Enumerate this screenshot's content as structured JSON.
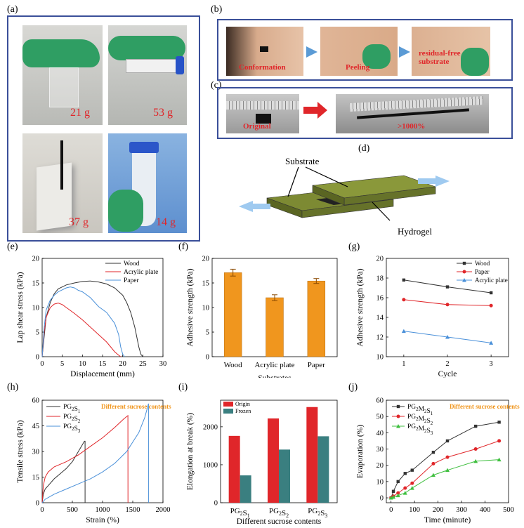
{
  "labels": {
    "a": "(a)",
    "b": "(b)",
    "c": "(c)",
    "d": "(d)",
    "e": "(e)",
    "f": "(f)",
    "g": "(g)",
    "h": "(h)",
    "i": "(i)",
    "j": "(j)"
  },
  "panel_a": {
    "weights": [
      "21 g",
      "53 g",
      "37 g",
      "14 g"
    ]
  },
  "panel_b": {
    "steps": [
      "Conformation",
      "Peeling",
      "residual-free substrate"
    ]
  },
  "panel_c": {
    "left": "Original",
    "right": ">1000%"
  },
  "panel_d": {
    "substrate": "Substrate",
    "hydrogel": "Hydrogel"
  },
  "colors": {
    "frame": "#3a4f99",
    "red": "#e0262a",
    "blue": "#4a90d9",
    "orange": "#f0961e",
    "teal": "#3a7f80",
    "slab": "#6e7a2a"
  },
  "chart_data": [
    {
      "id": "e",
      "type": "line",
      "xlabel": "Displacement (mm)",
      "ylabel": "Lap shear stress (kPa)",
      "xlim": [
        0,
        30
      ],
      "ylim": [
        0,
        20
      ],
      "xticks": [
        0,
        5,
        10,
        15,
        20,
        25,
        30
      ],
      "yticks": [
        0,
        5,
        10,
        15,
        20
      ],
      "legend_position": "top-right",
      "series": [
        {
          "name": "Wood",
          "color": "#333333",
          "x": [
            0,
            1,
            2,
            3,
            4,
            6,
            8,
            10,
            12,
            14,
            16,
            18,
            20,
            21,
            22,
            23,
            24,
            24.5,
            25
          ],
          "y": [
            0,
            8,
            11,
            12.8,
            13.8,
            14.6,
            15,
            15.3,
            15.4,
            15.2,
            14.8,
            14,
            12.5,
            11,
            9,
            6,
            2,
            0.5,
            0
          ]
        },
        {
          "name": "Acrylic plate",
          "color": "#e0262a",
          "x": [
            0,
            0.5,
            1,
            2,
            3,
            4,
            5,
            6,
            8,
            10,
            12,
            14,
            16,
            17,
            18,
            19,
            19.5
          ],
          "y": [
            0,
            5,
            8,
            10,
            10.7,
            10.9,
            10.6,
            10,
            8.8,
            7.5,
            6,
            4.5,
            3,
            2,
            1,
            0.3,
            0
          ]
        },
        {
          "name": "Paper",
          "color": "#4a90d9",
          "x": [
            0,
            0.5,
            1,
            2,
            3,
            4,
            5,
            6,
            7,
            8,
            9,
            10,
            12,
            14,
            16,
            18,
            19,
            19.5,
            20,
            20.5
          ],
          "y": [
            0,
            6,
            9.5,
            11.5,
            12.5,
            13.2,
            13.6,
            14,
            14.2,
            14,
            13.5,
            13.2,
            12,
            10.2,
            9,
            6.8,
            4.5,
            2,
            0.5,
            0
          ]
        }
      ]
    },
    {
      "id": "f",
      "type": "bar",
      "xlabel": "Substrates",
      "ylabel": "Adhesive strength (kPa)",
      "ylim": [
        0,
        20
      ],
      "yticks": [
        0,
        5,
        10,
        15,
        20
      ],
      "categories": [
        "Wood",
        "Acrylic plate",
        "Paper"
      ],
      "values": [
        17.1,
        12.0,
        15.4
      ],
      "errors": [
        0.7,
        0.6,
        0.5
      ],
      "color": "#f0961e"
    },
    {
      "id": "g",
      "type": "line",
      "xlabel": "Cycle",
      "ylabel": "Adhesive strength (kPa)",
      "xlim": [
        0.6,
        3.4
      ],
      "ylim": [
        10,
        20
      ],
      "xticks": [
        1,
        2,
        3
      ],
      "yticks": [
        10,
        12,
        14,
        16,
        18,
        20
      ],
      "legend_position": "top-right",
      "series": [
        {
          "name": "Wood",
          "color": "#333333",
          "marker": "square",
          "x": [
            1,
            2,
            3
          ],
          "y": [
            17.8,
            17.1,
            16.5
          ]
        },
        {
          "name": "Paper",
          "color": "#e0262a",
          "marker": "circle",
          "x": [
            1,
            2,
            3
          ],
          "y": [
            15.8,
            15.3,
            15.2
          ]
        },
        {
          "name": "Acrylic plate",
          "color": "#4a90d9",
          "marker": "triangle",
          "x": [
            1,
            2,
            3
          ],
          "y": [
            12.6,
            12.0,
            11.4
          ]
        }
      ]
    },
    {
      "id": "h",
      "type": "line",
      "xlabel": "Strain (%)",
      "ylabel": "Tensile stress (kPa)",
      "xlim": [
        0,
        2000
      ],
      "ylim": [
        0,
        60
      ],
      "xticks": [
        0,
        500,
        1000,
        1500,
        2000
      ],
      "yticks": [
        0,
        15,
        30,
        45,
        60
      ],
      "annotation": "Different sucrose contents",
      "legend_position": "top-left",
      "series": [
        {
          "name": "PG2S1",
          "color": "#333333",
          "x": [
            0,
            20,
            50,
            100,
            200,
            300,
            400,
            500,
            600,
            700,
            710,
            711
          ],
          "y": [
            0,
            5,
            8,
            10,
            14,
            17,
            20,
            24,
            30,
            36,
            36,
            0
          ]
        },
        {
          "name": "PG2S2",
          "color": "#e0262a",
          "x": [
            0,
            20,
            50,
            100,
            200,
            400,
            600,
            800,
            1000,
            1200,
            1350,
            1420,
            1421
          ],
          "y": [
            0,
            10,
            15,
            18,
            21,
            24,
            28,
            33,
            38,
            44,
            49,
            51,
            0
          ]
        },
        {
          "name": "PG2S3",
          "color": "#4a90d9",
          "x": [
            0,
            50,
            100,
            200,
            400,
            600,
            800,
            1000,
            1200,
            1400,
            1600,
            1700,
            1760,
            1761
          ],
          "y": [
            0,
            2,
            3,
            5,
            8,
            11,
            14,
            18,
            23,
            30,
            41,
            50,
            58,
            0
          ]
        }
      ]
    },
    {
      "id": "i",
      "type": "bar",
      "xlabel": "Different sucrose contents",
      "ylabel": "Elongation at break (%)",
      "ylim": [
        0,
        2700
      ],
      "yticks": [
        0,
        1000,
        2000
      ],
      "categories": [
        "PG2S1",
        "PG2S2",
        "PG2S3"
      ],
      "series": [
        {
          "name": "Origin",
          "color": "#e0262a",
          "values": [
            1760,
            2220,
            2520
          ]
        },
        {
          "name": "Frozen",
          "color": "#3a7f80",
          "values": [
            720,
            1400,
            1750
          ]
        }
      ]
    },
    {
      "id": "j",
      "type": "line",
      "xlabel": "Time (minute)",
      "ylabel": "Evaporation (%)",
      "xlim": [
        -20,
        500
      ],
      "ylim": [
        -3,
        60
      ],
      "xticks": [
        0,
        100,
        200,
        300,
        400,
        500
      ],
      "yticks": [
        0,
        10,
        20,
        30,
        40,
        50,
        60
      ],
      "annotation": "Different sucrose contents",
      "legend_position": "top-left",
      "series": [
        {
          "name": "PG2M2S1",
          "color": "#333333",
          "marker": "square",
          "x": [
            0,
            10,
            30,
            60,
            90,
            180,
            240,
            360,
            460
          ],
          "y": [
            0,
            4,
            10,
            15,
            17,
            28,
            35,
            44,
            46.5
          ]
        },
        {
          "name": "PG2M2S2",
          "color": "#e0262a",
          "marker": "circle",
          "x": [
            0,
            10,
            30,
            60,
            90,
            180,
            240,
            360,
            460
          ],
          "y": [
            0,
            1,
            3,
            6,
            9,
            21,
            25,
            30,
            35
          ]
        },
        {
          "name": "PG2M2S3",
          "color": "#3fbf3f",
          "marker": "triangle",
          "x": [
            0,
            10,
            30,
            60,
            90,
            180,
            240,
            360,
            460
          ],
          "y": [
            0,
            0.5,
            1.5,
            3,
            6,
            14,
            17,
            22.5,
            23.5
          ]
        }
      ]
    }
  ]
}
